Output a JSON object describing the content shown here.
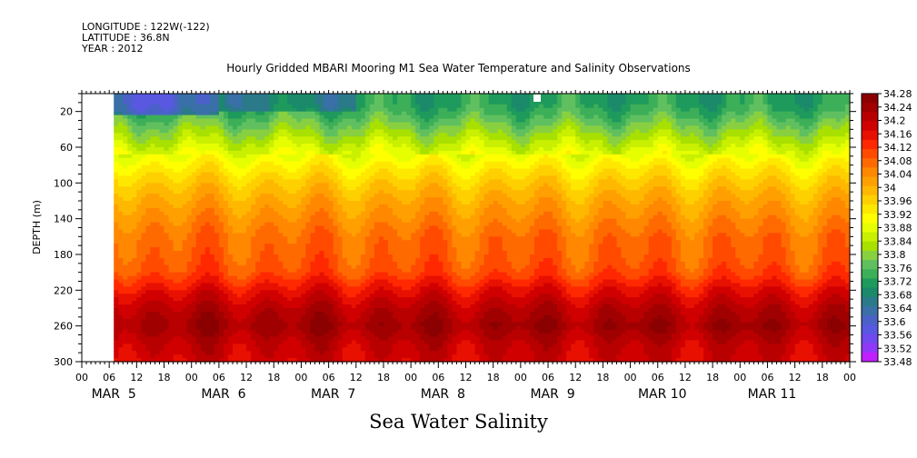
{
  "header": {
    "longitude": "LONGITUDE : 122W(-122)",
    "latitude": "LATITUDE : 36.8N",
    "year": "YEAR : 2012"
  },
  "title": "Hourly Gridded MBARI Mooring M1 Sea Water Temperature and Salinity Observations",
  "variable_title": "Sea Water Salinity",
  "chart_data": {
    "type": "heatmap",
    "ylabel": "DEPTH (m)",
    "ylim": [
      300,
      0
    ],
    "y_reversed": true,
    "y_ticks": [
      20,
      60,
      100,
      140,
      180,
      220,
      260,
      300
    ],
    "x_hour_ticks": [
      "00",
      "06",
      "12",
      "18",
      "00",
      "06",
      "12",
      "18",
      "00",
      "06",
      "12",
      "18",
      "00",
      "06",
      "12",
      "18",
      "00",
      "06",
      "12",
      "18",
      "00",
      "06",
      "12",
      "18",
      "00",
      "06",
      "12",
      "18",
      "00"
    ],
    "x_day_labels": [
      "MAR  5",
      "MAR  6",
      "MAR  7",
      "MAR  8",
      "MAR  9",
      "MAR 10",
      "MAR 11"
    ],
    "data_start_hour": 7,
    "data_end_hour": 168,
    "colorbar": {
      "levels": [
        "34.28",
        "34.24",
        "34.2",
        "34.16",
        "34.12",
        "34.08",
        "34.04",
        "34",
        "33.96",
        "33.92",
        "33.88",
        "33.84",
        "33.8",
        "33.76",
        "33.72",
        "33.68",
        "33.64",
        "33.6",
        "33.56",
        "33.52",
        "33.48"
      ],
      "colors": [
        "#8b0000",
        "#a00000",
        "#b80000",
        "#d00000",
        "#e81000",
        "#ff2800",
        "#ff4a00",
        "#ff6a00",
        "#ff8800",
        "#ffa000",
        "#ffb800",
        "#ffd000",
        "#ffe800",
        "#ffff00",
        "#e6ff00",
        "#c8f000",
        "#a8e000",
        "#88d040",
        "#60c060",
        "#3caf58",
        "#1e9a5c",
        "#1a8a6a",
        "#2a7a8a",
        "#3a70a8",
        "#4a62c8",
        "#5858e0",
        "#7048f0",
        "#9038f8",
        "#c020ff"
      ]
    },
    "depth_profile": [
      {
        "depth": 10,
        "salinity": 33.72
      },
      {
        "depth": 20,
        "salinity": 33.74
      },
      {
        "depth": 40,
        "salinity": 33.8
      },
      {
        "depth": 60,
        "salinity": 33.86
      },
      {
        "depth": 80,
        "salinity": 33.92
      },
      {
        "depth": 100,
        "salinity": 33.97
      },
      {
        "depth": 120,
        "salinity": 34.01
      },
      {
        "depth": 140,
        "salinity": 34.04
      },
      {
        "depth": 160,
        "salinity": 34.07
      },
      {
        "depth": 180,
        "salinity": 34.08
      },
      {
        "depth": 200,
        "salinity": 34.1
      },
      {
        "depth": 220,
        "salinity": 34.16
      },
      {
        "depth": 240,
        "salinity": 34.21
      },
      {
        "depth": 260,
        "salinity": 34.24
      },
      {
        "depth": 280,
        "salinity": 34.2
      },
      {
        "depth": 300,
        "salinity": 34.18
      }
    ]
  }
}
